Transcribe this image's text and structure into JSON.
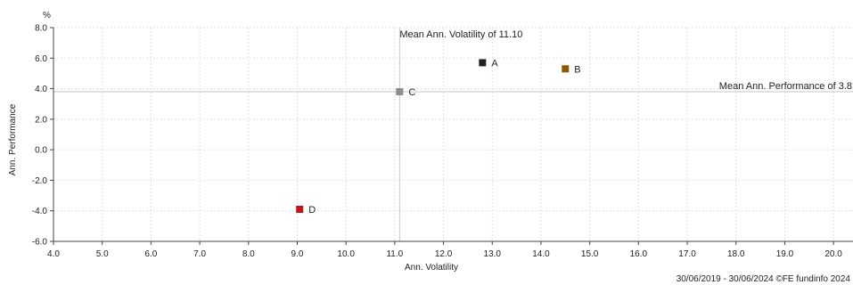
{
  "chart_data": {
    "type": "scatter",
    "unit_label": "%",
    "xlabel": "Ann. Volatility",
    "ylabel": "Ann. Performance",
    "xlim": [
      4.0,
      20.4
    ],
    "ylim": [
      -6.0,
      8.0
    ],
    "x_ticks": [
      "4.0",
      "5.0",
      "6.0",
      "7.0",
      "8.0",
      "9.0",
      "10.0",
      "11.0",
      "12.0",
      "13.0",
      "14.0",
      "15.0",
      "16.0",
      "17.0",
      "18.0",
      "19.0",
      "20.0"
    ],
    "y_ticks": [
      "8.0",
      "6.0",
      "4.0",
      "2.0",
      "0.0",
      "-2.0",
      "-4.0",
      "-6.0"
    ],
    "grid": true,
    "points": [
      {
        "label": "A",
        "x": 12.8,
        "y": 5.7,
        "color": "#222222"
      },
      {
        "label": "B",
        "x": 14.5,
        "y": 5.3,
        "color": "#8a5a00"
      },
      {
        "label": "C",
        "x": 11.1,
        "y": 3.8,
        "color": "#8c8c8c"
      },
      {
        "label": "D",
        "x": 9.05,
        "y": -3.9,
        "color": "#c0171c"
      }
    ],
    "reference_lines": {
      "vertical": {
        "x": 11.1,
        "label": "Mean Ann. Volatility of 11.10"
      },
      "horizontal": {
        "y": 3.8,
        "label": "Mean Ann. Performance of 3.8"
      }
    },
    "footer": "30/06/2019 - 30/06/2024 ©FE fundinfo 2024"
  }
}
